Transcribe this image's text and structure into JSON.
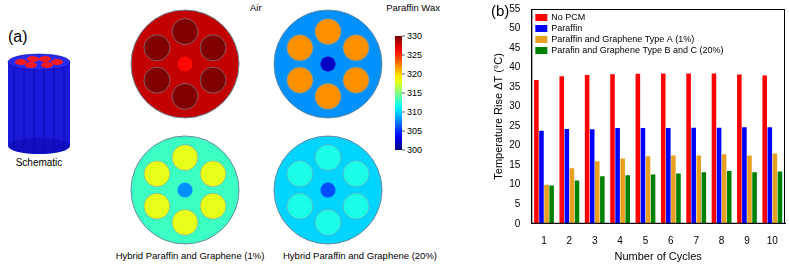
{
  "chart_data": {
    "type": "bar",
    "panel_label": "(b)",
    "x_label": "Number of Cycles",
    "y_label": "Temperature Rise ΔT (°C)",
    "categories": [
      "1",
      "2",
      "3",
      "4",
      "5",
      "6",
      "7",
      "8",
      "9",
      "10"
    ],
    "series": [
      {
        "name": "No PCM",
        "color": "#ff0000",
        "values": [
          36.8,
          37.8,
          38.1,
          38.3,
          38.4,
          38.5,
          38.5,
          38.5,
          38.2,
          38.0
        ]
      },
      {
        "name": "Paraffin",
        "color": "#0000ff",
        "values": [
          23.8,
          24.3,
          24.2,
          24.5,
          24.5,
          24.5,
          24.6,
          24.6,
          24.7,
          24.7
        ]
      },
      {
        "name": "Paraffin and Graphene Type A (1%)",
        "color": "#e8a020",
        "values": [
          10.0,
          14.2,
          16.0,
          16.7,
          17.3,
          17.5,
          17.5,
          17.8,
          17.5,
          18.0
        ]
      },
      {
        "name": "Parafin and Graphene Type B and C (20%)",
        "color": "#008000",
        "values": [
          9.8,
          11.1,
          12.2,
          12.4,
          12.6,
          12.9,
          13.2,
          13.5,
          13.2,
          13.4
        ]
      }
    ],
    "ylim": [
      0,
      55
    ],
    "yticks": [
      0,
      5,
      10,
      15,
      20,
      25,
      30,
      35,
      40,
      45,
      50,
      55
    ],
    "grid": false,
    "legend": "upper left"
  },
  "panel_a": {
    "label": "(a)",
    "schematic_label": "Schematic",
    "maps": [
      {
        "title": "Air",
        "cell_temperature": 330,
        "background_temperature": 328,
        "center_temperature": 326
      },
      {
        "title": "Paraffin Wax",
        "cell_temperature": 322,
        "background_temperature": 308,
        "center_temperature": 302
      },
      {
        "title": "Hybrid Paraffin and Graphene (1%)",
        "cell_temperature": 318,
        "background_temperature": 313,
        "center_temperature": 308
      },
      {
        "title": "Hybrid Paraffin and Graphene (20%)",
        "cell_temperature": 312,
        "background_temperature": 310,
        "center_temperature": 306
      }
    ],
    "colorbar": {
      "range": [
        300,
        330
      ],
      "ticks": [
        300,
        305,
        310,
        315,
        320,
        325,
        330
      ]
    }
  }
}
